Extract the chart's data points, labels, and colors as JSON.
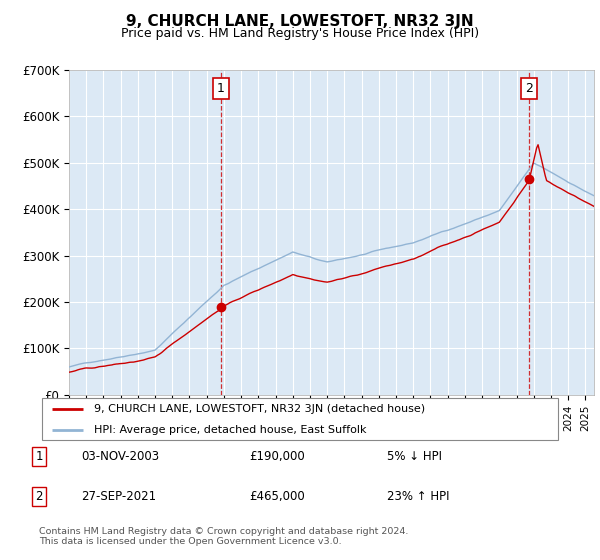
{
  "title": "9, CHURCH LANE, LOWESTOFT, NR32 3JN",
  "subtitle": "Price paid vs. HM Land Registry's House Price Index (HPI)",
  "sale1_date": "03-NOV-2003",
  "sale1_price": 190000,
  "sale1_year": 2003.83,
  "sale2_date": "27-SEP-2021",
  "sale2_price": 465000,
  "sale2_year": 2021.73,
  "legend_line1": "9, CHURCH LANE, LOWESTOFT, NR32 3JN (detached house)",
  "legend_line2": "HPI: Average price, detached house, East Suffolk",
  "table_row1": [
    "1",
    "03-NOV-2003",
    "£190,000",
    "5% ↓ HPI"
  ],
  "table_row2": [
    "2",
    "27-SEP-2021",
    "£465,000",
    "23% ↑ HPI"
  ],
  "footer": "Contains HM Land Registry data © Crown copyright and database right 2024.\nThis data is licensed under the Open Government Licence v3.0.",
  "hpi_color": "#92b4d4",
  "price_color": "#cc0000",
  "marker_color": "#cc0000",
  "background_color": "#dce9f5",
  "grid_color": "#ffffff",
  "ylim": [
    0,
    700000
  ],
  "yticks": [
    0,
    100000,
    200000,
    300000,
    400000,
    500000,
    600000,
    700000
  ],
  "xlim_start": 1995.0,
  "xlim_end": 2025.5
}
